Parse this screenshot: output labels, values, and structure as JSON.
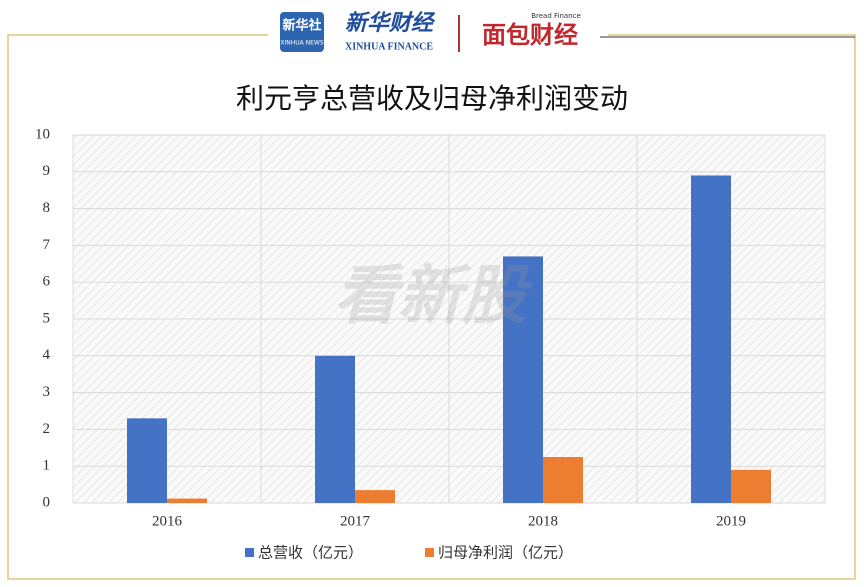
{
  "header": {
    "logo_1": "新华社",
    "logo_1_sub": "XINHUA NEWS",
    "logo_2": "新华财经",
    "logo_2_sub": "XINHUA FINANCE",
    "logo_3": "面包财经",
    "logo_3_sub": "Bread Finance",
    "watermark": "看新股"
  },
  "chart_data": {
    "type": "bar",
    "title": "利元亨总营收及归母净利润变动",
    "categories": [
      "2016",
      "2017",
      "2018",
      "2019"
    ],
    "series": [
      {
        "name": "总营收（亿元）",
        "color": "#4472c4",
        "values": [
          2.3,
          4.0,
          6.7,
          8.9
        ]
      },
      {
        "name": "归母净利润（亿元）",
        "color": "#ed7d31",
        "values": [
          0.12,
          0.35,
          1.25,
          0.9
        ]
      }
    ],
    "ylim": [
      0,
      10
    ],
    "yticks": [
      0,
      1,
      2,
      3,
      4,
      5,
      6,
      7,
      8,
      9,
      10
    ],
    "grid": true,
    "legend": "bottom"
  }
}
